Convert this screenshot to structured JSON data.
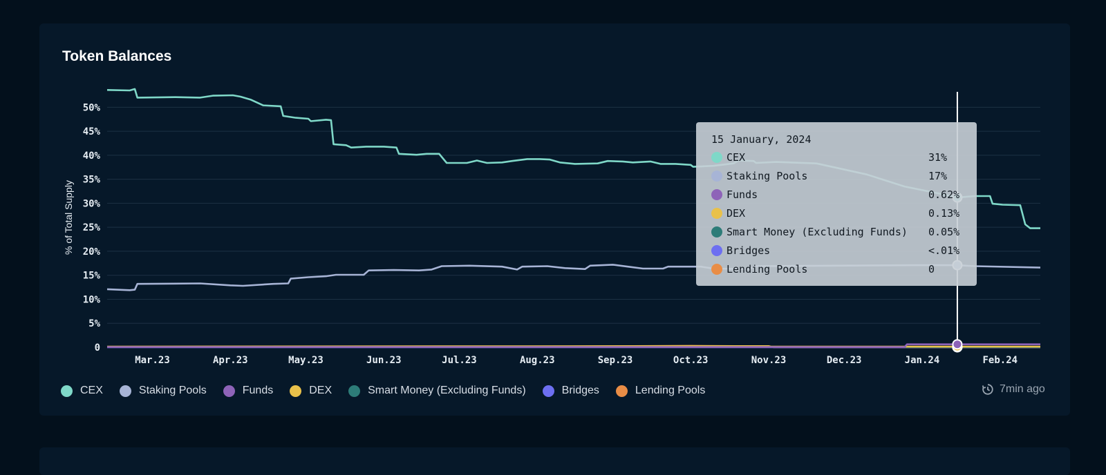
{
  "card": {
    "title": "Token Balances"
  },
  "chart_data": {
    "type": "line",
    "title": "Token Balances",
    "ylabel": "% of Total Supply",
    "xlabel": "",
    "ylim": [
      0,
      53.5
    ],
    "yticks": [
      0,
      5,
      10,
      15,
      20,
      25,
      30,
      35,
      40,
      45,
      50
    ],
    "ytick_labels": [
      "0",
      "5%",
      "10%",
      "15%",
      "20%",
      "25%",
      "30%",
      "35%",
      "40%",
      "45%",
      "50%"
    ],
    "xlim": [
      "2023-02-11",
      "2024-02-17"
    ],
    "xticks": [
      "2023-03-01",
      "2023-04-01",
      "2023-05-01",
      "2023-06-01",
      "2023-07-01",
      "2023-08-01",
      "2023-09-01",
      "2023-10-01",
      "2023-11-01",
      "2023-12-01",
      "2024-01-01",
      "2024-02-01"
    ],
    "xtick_labels": [
      "Mar.23",
      "Apr.23",
      "May.23",
      "Jun.23",
      "Jul.23",
      "Aug.23",
      "Sep.23",
      "Oct.23",
      "Nov.23",
      "Dec.23",
      "Jan.24",
      "Feb.24"
    ],
    "grid": true,
    "legend_position": "bottom",
    "series": [
      {
        "name": "CEX",
        "color": "#7fd8c8",
        "points": [
          [
            "2023-02-11",
            53.6
          ],
          [
            "2023-02-20",
            53.5
          ],
          [
            "2023-02-22",
            53.8
          ],
          [
            "2023-02-23",
            52.0
          ],
          [
            "2023-03-10",
            52.1
          ],
          [
            "2023-03-20",
            52.0
          ],
          [
            "2023-03-25",
            52.4
          ],
          [
            "2023-04-02",
            52.5
          ],
          [
            "2023-04-05",
            52.2
          ],
          [
            "2023-04-09",
            51.6
          ],
          [
            "2023-04-14",
            50.4
          ],
          [
            "2023-04-21",
            50.2
          ],
          [
            "2023-04-22",
            48.2
          ],
          [
            "2023-04-27",
            47.8
          ],
          [
            "2023-05-02",
            47.6
          ],
          [
            "2023-05-03",
            47.1
          ],
          [
            "2023-05-09",
            47.4
          ],
          [
            "2023-05-11",
            47.3
          ],
          [
            "2023-05-12",
            42.3
          ],
          [
            "2023-05-17",
            42.1
          ],
          [
            "2023-05-19",
            41.6
          ],
          [
            "2023-05-25",
            41.8
          ],
          [
            "2023-06-01",
            41.8
          ],
          [
            "2023-06-06",
            41.6
          ],
          [
            "2023-06-07",
            40.3
          ],
          [
            "2023-06-14",
            40.1
          ],
          [
            "2023-06-18",
            40.3
          ],
          [
            "2023-06-23",
            40.3
          ],
          [
            "2023-06-26",
            38.4
          ],
          [
            "2023-07-04",
            38.4
          ],
          [
            "2023-07-08",
            38.9
          ],
          [
            "2023-07-12",
            38.4
          ],
          [
            "2023-07-18",
            38.5
          ],
          [
            "2023-07-22",
            38.8
          ],
          [
            "2023-07-28",
            39.2
          ],
          [
            "2023-08-02",
            39.2
          ],
          [
            "2023-08-06",
            39.1
          ],
          [
            "2023-08-10",
            38.5
          ],
          [
            "2023-08-16",
            38.2
          ],
          [
            "2023-08-25",
            38.3
          ],
          [
            "2023-08-29",
            38.8
          ],
          [
            "2023-09-04",
            38.7
          ],
          [
            "2023-09-08",
            38.5
          ],
          [
            "2023-09-15",
            38.7
          ],
          [
            "2023-09-19",
            38.2
          ],
          [
            "2023-09-25",
            38.2
          ],
          [
            "2023-10-01",
            38.0
          ],
          [
            "2023-10-02",
            37.6
          ],
          [
            "2023-10-10",
            37.8
          ],
          [
            "2023-10-18",
            38.3
          ],
          [
            "2023-10-20",
            38.9
          ],
          [
            "2023-10-26",
            38.8
          ],
          [
            "2023-10-27",
            38.4
          ],
          [
            "2023-11-04",
            38.6
          ],
          [
            "2023-11-20",
            38.3
          ],
          [
            "2023-12-10",
            36.0
          ],
          [
            "2023-12-25",
            33.5
          ],
          [
            "2024-01-08",
            32.0
          ],
          [
            "2024-01-15",
            31.2
          ],
          [
            "2024-01-22",
            31.5
          ],
          [
            "2024-01-28",
            31.5
          ],
          [
            "2024-01-29",
            29.9
          ],
          [
            "2024-02-02",
            29.7
          ],
          [
            "2024-02-09",
            29.6
          ],
          [
            "2024-02-11",
            25.6
          ],
          [
            "2024-02-13",
            24.8
          ],
          [
            "2024-02-17",
            24.8
          ]
        ]
      },
      {
        "name": "Staking Pools",
        "color": "#a7b4d6",
        "points": [
          [
            "2023-02-11",
            12.1
          ],
          [
            "2023-02-20",
            11.9
          ],
          [
            "2023-02-22",
            12.0
          ],
          [
            "2023-02-23",
            13.2
          ],
          [
            "2023-03-20",
            13.3
          ],
          [
            "2023-04-01",
            12.9
          ],
          [
            "2023-04-06",
            12.8
          ],
          [
            "2023-04-18",
            13.2
          ],
          [
            "2023-04-24",
            13.3
          ],
          [
            "2023-04-25",
            14.3
          ],
          [
            "2023-05-02",
            14.6
          ],
          [
            "2023-05-09",
            14.8
          ],
          [
            "2023-05-13",
            15.1
          ],
          [
            "2023-05-24",
            15.1
          ],
          [
            "2023-05-26",
            16.0
          ],
          [
            "2023-06-05",
            16.1
          ],
          [
            "2023-06-15",
            16.0
          ],
          [
            "2023-06-20",
            16.2
          ],
          [
            "2023-06-24",
            16.9
          ],
          [
            "2023-07-05",
            17.0
          ],
          [
            "2023-07-18",
            16.8
          ],
          [
            "2023-07-24",
            16.2
          ],
          [
            "2023-07-26",
            16.8
          ],
          [
            "2023-08-05",
            16.9
          ],
          [
            "2023-08-12",
            16.5
          ],
          [
            "2023-08-20",
            16.3
          ],
          [
            "2023-08-22",
            17.0
          ],
          [
            "2023-08-31",
            17.2
          ],
          [
            "2023-09-06",
            16.8
          ],
          [
            "2023-09-12",
            16.4
          ],
          [
            "2023-09-20",
            16.4
          ],
          [
            "2023-09-22",
            16.8
          ],
          [
            "2023-10-05",
            16.8
          ],
          [
            "2023-10-10",
            16.4
          ],
          [
            "2023-10-24",
            16.3
          ],
          [
            "2023-10-27",
            16.9
          ],
          [
            "2023-12-30",
            17.1
          ],
          [
            "2024-01-15",
            17.1
          ],
          [
            "2024-01-22",
            16.9
          ],
          [
            "2024-02-17",
            16.6
          ]
        ]
      },
      {
        "name": "Funds",
        "color": "#8e63b8",
        "points": [
          [
            "2023-02-11",
            0.05
          ],
          [
            "2023-12-25",
            0.05
          ],
          [
            "2023-12-26",
            0.62
          ],
          [
            "2024-02-17",
            0.62
          ]
        ]
      },
      {
        "name": "DEX",
        "color": "#e9c14a",
        "points": [
          [
            "2023-02-11",
            0.15
          ],
          [
            "2023-10-01",
            0.25
          ],
          [
            "2023-11-01",
            0.25
          ],
          [
            "2023-11-02",
            0.13
          ],
          [
            "2024-02-17",
            0.13
          ]
        ]
      },
      {
        "name": "Smart Money (Excluding Funds)",
        "color": "#2d7c78",
        "points": [
          [
            "2023-02-11",
            0.05
          ],
          [
            "2024-02-17",
            0.05
          ]
        ]
      },
      {
        "name": "Bridges",
        "color": "#6d6ff1",
        "points": [
          [
            "2023-02-11",
            0.0
          ],
          [
            "2024-02-17",
            0.0
          ]
        ]
      },
      {
        "name": "Lending Pools",
        "color": "#e98d46",
        "points": [
          [
            "2023-02-11",
            0.1
          ],
          [
            "2023-08-01",
            0.15
          ],
          [
            "2023-10-01",
            0.3
          ],
          [
            "2023-11-01",
            0.2
          ],
          [
            "2023-11-03",
            0.0
          ],
          [
            "2024-02-17",
            0.0
          ]
        ]
      }
    ],
    "hover": {
      "x": "2024-01-15",
      "date_label": "15 January, 2024",
      "rows": [
        {
          "name": "CEX",
          "value": "31%",
          "color": "#7fd8c8",
          "y": 31.2
        },
        {
          "name": "Staking Pools",
          "value": "17%",
          "color": "#a7b4d6",
          "y": 17.1
        },
        {
          "name": "Funds",
          "value": "0.62%",
          "color": "#8e63b8",
          "y": 0.62
        },
        {
          "name": "DEX",
          "value": "0.13%",
          "color": "#e9c14a",
          "y": 0.13
        },
        {
          "name": "Smart Money (Excluding Funds)",
          "value": "0.05%",
          "color": "#2d7c78",
          "y": 0.05
        },
        {
          "name": "Bridges",
          "value": "<.01%",
          "color": "#6d6ff1",
          "y": 0.0
        },
        {
          "name": "Lending Pools",
          "value": "0",
          "color": "#e98d46",
          "y": 0.0
        }
      ]
    }
  },
  "legend": [
    {
      "label": "CEX",
      "color": "#7fd8c8"
    },
    {
      "label": "Staking Pools",
      "color": "#a7b4d6"
    },
    {
      "label": "Funds",
      "color": "#8e63b8"
    },
    {
      "label": "DEX",
      "color": "#e9c14a"
    },
    {
      "label": "Smart Money (Excluding Funds)",
      "color": "#2d7c78"
    },
    {
      "label": "Bridges",
      "color": "#6d6ff1"
    },
    {
      "label": "Lending Pools",
      "color": "#e98d46"
    }
  ],
  "status": {
    "updated_text": "7min ago",
    "icon": "history-clock-icon"
  }
}
